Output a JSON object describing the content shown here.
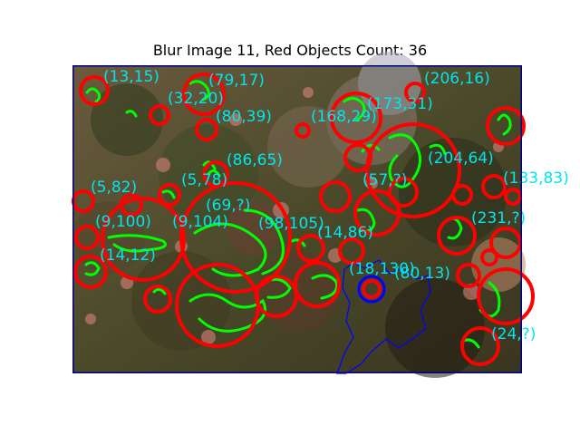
{
  "figure": {
    "title": "Blur Image 11, Red Objects Count: 36"
  },
  "image": {
    "description_colors": {
      "frame": "#000080",
      "circle": "#ff0000",
      "contour": "#00ff00",
      "label": "#00e5ee",
      "blue_contour": "#0000ff"
    },
    "annotations": [
      "(13,15)",
      "(79,17)",
      "(206,16)",
      "(32,20)",
      "(80,39)",
      "(168,29)",
      "(173,31)",
      "(86,65)",
      "(204,64)",
      "(5,82)",
      "(5,78)",
      "(133,83)",
      "(57,?)",
      "(69,?)",
      "(9,100)",
      "(98,105)",
      "(231,?)",
      "(9,104)",
      "(14,12)",
      "(14,86)",
      "(18,130)",
      "(80,13)",
      "(24,?)"
    ]
  }
}
